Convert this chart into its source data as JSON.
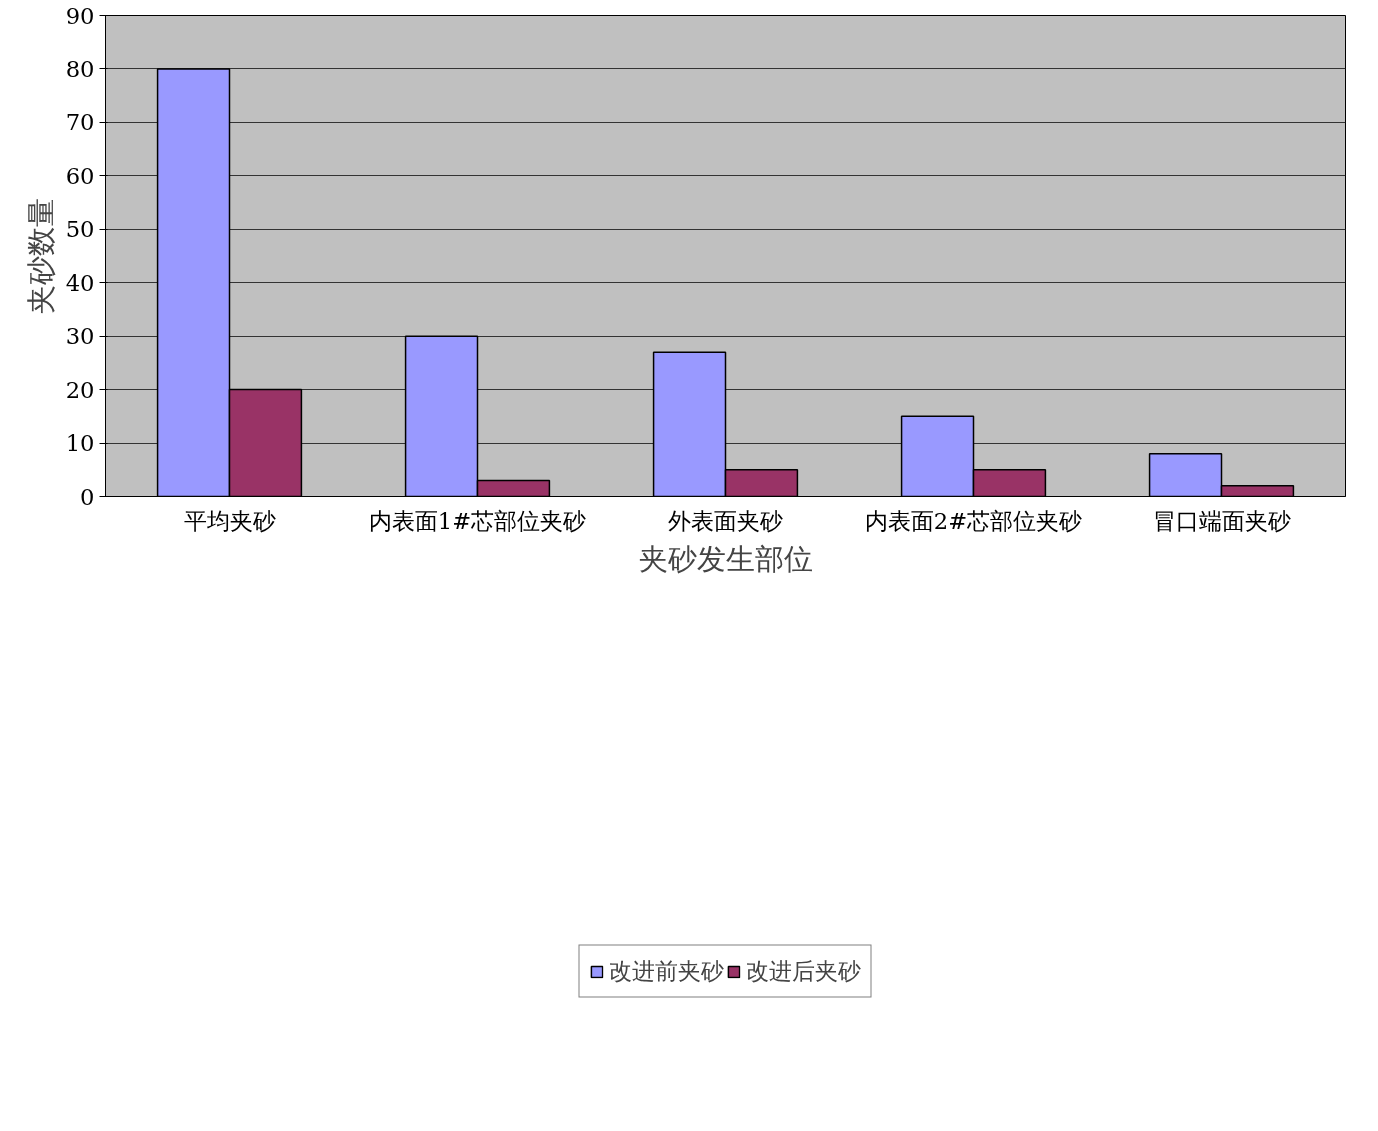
{
  "chart_data": {
    "type": "bar",
    "xlabel": "夹砂发生部位",
    "ylabel": "夹砂数量",
    "categories": [
      "平均夹砂",
      "内表面1#芯部位夹砂",
      "外表面夹砂",
      "内表面2#芯部位夹砂",
      "冒口端面夹砂"
    ],
    "series": [
      {
        "name": "改进前夹砂",
        "color": "#9999ff",
        "values": [
          80,
          30,
          27,
          15,
          8
        ]
      },
      {
        "name": "改进后夹砂",
        "color": "#993366",
        "values": [
          20,
          3,
          5,
          5,
          2
        ]
      }
    ],
    "ylim": [
      0,
      90
    ],
    "yticks": [
      0,
      10,
      20,
      30,
      40,
      50,
      60,
      70,
      80,
      90
    ],
    "grid": "y",
    "legend": "bottom"
  }
}
